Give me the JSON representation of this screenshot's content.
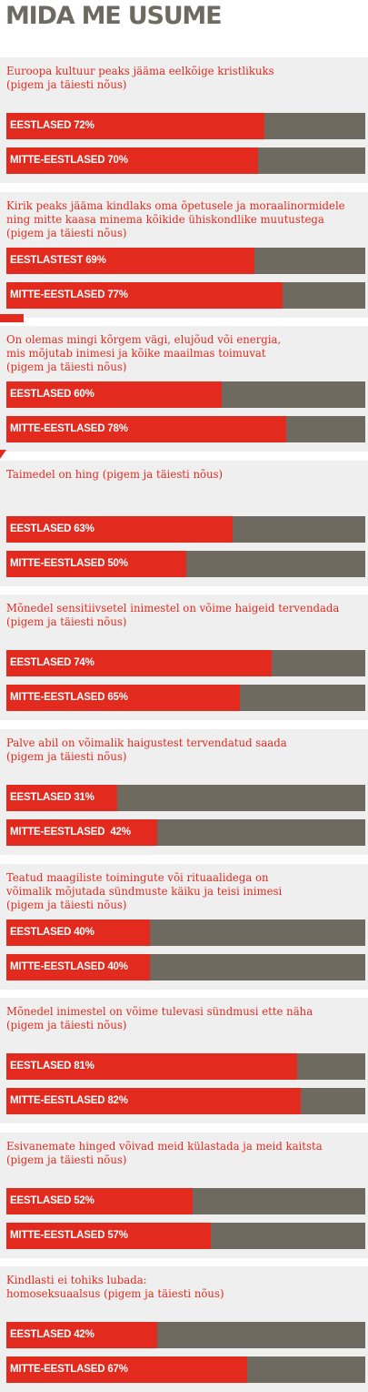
{
  "title": "MIDA ME USUME",
  "colors": {
    "accent": "#e32a1f",
    "bar_bg": "#6e6a60",
    "panel_bg": "#efefef",
    "title": "#6d6a61"
  },
  "chart_data": {
    "type": "bar",
    "orientation": "horizontal",
    "xlim": [
      0,
      100
    ],
    "unit": "%",
    "groups": [
      {
        "question": "Euroopa kultuur peaks jääma eelkõige kristlikuks\n(pigem ja täiesti nõus)",
        "bars": [
          {
            "label": "EESTLASED 72%",
            "value": 72
          },
          {
            "label": "MITTE-EESTLASED 70%",
            "value": 70
          }
        ]
      },
      {
        "question": "Kirik peaks jääma kindlaks oma õpetusele ja moraalinormidele\nning mitte kaasa minema kõikide ühiskondlike muutustega\n(pigem ja täiesti nõus)",
        "bars": [
          {
            "label": "EESTLASTEST 69%",
            "value": 69
          },
          {
            "label": "MITTE-EESTLASED 77%",
            "value": 77
          }
        ]
      },
      {
        "question": "On olemas mingi kõrgem vägi, elujõud või energia,\nmis mõjutab inimesi ja kõike maailmas toimuvat\n(pigem ja täiesti nõus)",
        "bars": [
          {
            "label": "EESTLASED 60%",
            "value": 60
          },
          {
            "label": "MITTE-EESTLASED 78%",
            "value": 78
          }
        ]
      },
      {
        "question": "Taimedel on hing (pigem ja täiesti nõus)",
        "bars": [
          {
            "label": "EESTLASED 63%",
            "value": 63
          },
          {
            "label": "MITTE-EESTLASED 50%",
            "value": 50
          }
        ]
      },
      {
        "question": "Mõnedel sensitiivsetel inimestel on võime haigeid tervendada\n(pigem ja täiesti nõus)",
        "bars": [
          {
            "label": "EESTLASED 74%",
            "value": 74
          },
          {
            "label": "MITTE-EESTLASED 65%",
            "value": 65
          }
        ]
      },
      {
        "question": "Palve abil on võimalik haigustest tervendatud saada\n(pigem ja täiesti nõus)",
        "bars": [
          {
            "label": "EESTLASED 31%",
            "value": 31
          },
          {
            "label": "MITTE-EESTLASED  42%",
            "value": 42
          }
        ]
      },
      {
        "question": "Teatud maagiliste toimingute või rituaalidega on\nvõimalik mõjutada sündmuste käiku ja teisi inimesi\n(pigem ja täiesti nõus)",
        "bars": [
          {
            "label": "EESTLASED 40%",
            "value": 40
          },
          {
            "label": "MITTE-EESTLASED 40%",
            "value": 40
          }
        ]
      },
      {
        "question": "Mõnedel inimestel on võime tulevasi sündmusi ette näha\n(pigem ja täiesti nõus)",
        "bars": [
          {
            "label": "EESTLASED 81%",
            "value": 81
          },
          {
            "label": "MITTE-EESTLASED 82%",
            "value": 82
          }
        ]
      },
      {
        "question": "Esivanemate hinged võivad meid külastada ja meid kaitsta\n(pigem ja täiesti nõus)",
        "bars": [
          {
            "label": "EESTLASED 52%",
            "value": 52
          },
          {
            "label": "MITTE-EESTLASED 57%",
            "value": 57
          }
        ]
      },
      {
        "question": "Kindlasti ei tohiks lubada:\nhomoseksuaalsus (pigem ja täiesti nõus)",
        "bars": [
          {
            "label": "EESTLASED 42%",
            "value": 42
          },
          {
            "label": "MITTE-EESTLASED 67%",
            "value": 67
          }
        ]
      }
    ]
  }
}
